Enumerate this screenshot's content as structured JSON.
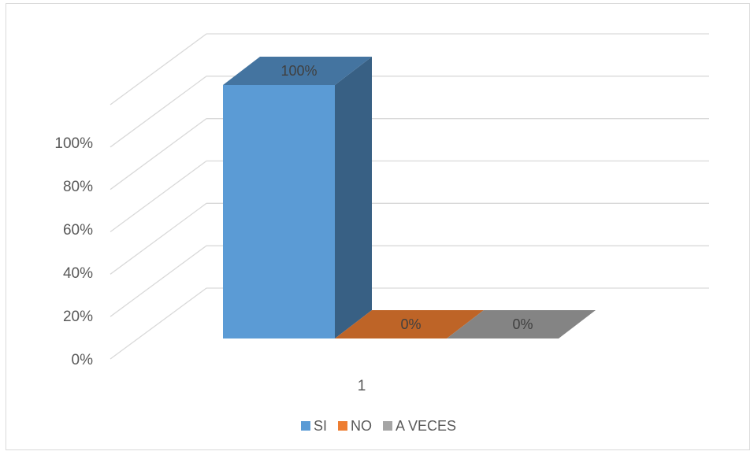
{
  "chart_data": {
    "type": "bar",
    "categories": [
      "1"
    ],
    "series": [
      {
        "name": "SI",
        "values": [
          1.0
        ],
        "color": "#5b9bd5",
        "label": "100%"
      },
      {
        "name": "NO",
        "values": [
          0.0
        ],
        "color": "#ed7d31",
        "label": "0%"
      },
      {
        "name": "A VECES",
        "values": [
          0.0
        ],
        "color": "#a5a5a5",
        "label": "0%"
      }
    ],
    "ytick_labels": [
      "0%",
      "20%",
      "40%",
      "60%",
      "80%",
      "100%"
    ],
    "ylim": [
      0,
      1.2
    ],
    "grid": true,
    "legend": "bottom",
    "style": "3d-clustered-column"
  }
}
